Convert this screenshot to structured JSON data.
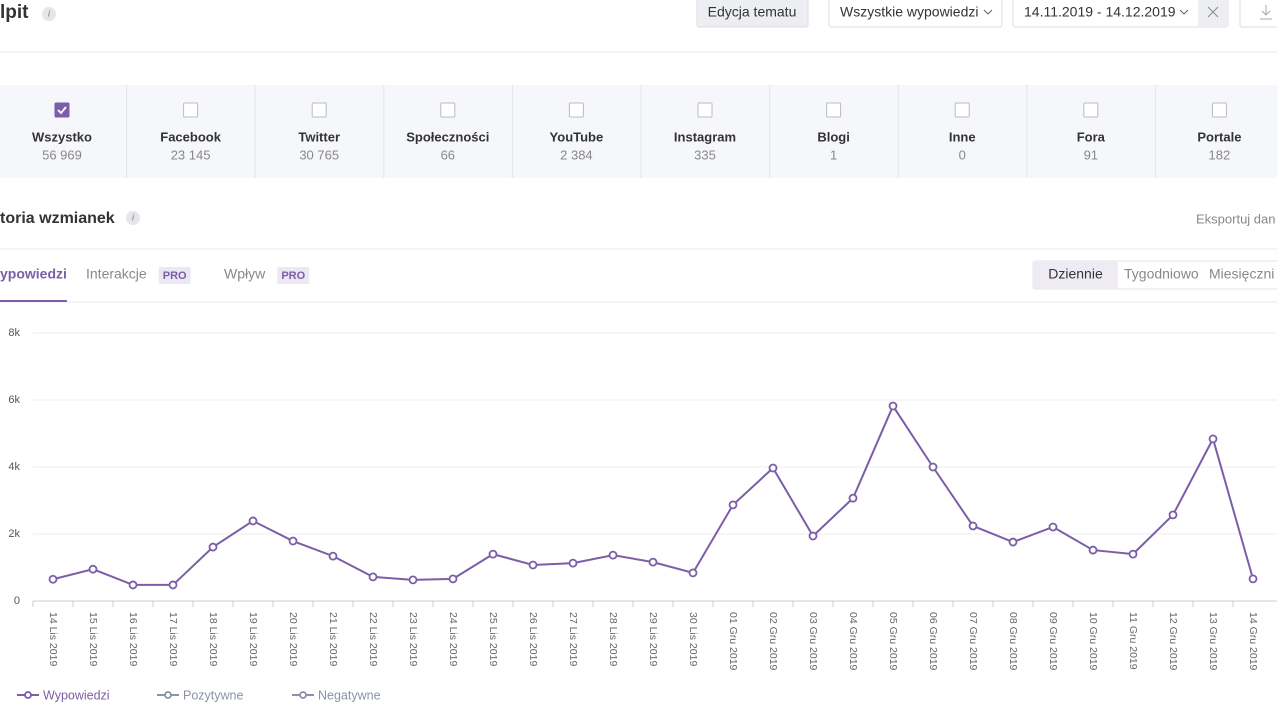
{
  "header": {
    "title": "lpit",
    "info": "i",
    "edit_button": "Edycja tematu",
    "filter": "Wszystkie wypowiedzi",
    "date_range": "14.11.2019 - 14.12.2019"
  },
  "sources": [
    {
      "label": "Wszystko",
      "count": "56 969",
      "checked": true
    },
    {
      "label": "Facebook",
      "count": "23 145",
      "checked": false
    },
    {
      "label": "Twitter",
      "count": "30 765",
      "checked": false
    },
    {
      "label": "Społeczności",
      "count": "66",
      "checked": false
    },
    {
      "label": "YouTube",
      "count": "2 384",
      "checked": false
    },
    {
      "label": "Instagram",
      "count": "335",
      "checked": false
    },
    {
      "label": "Blogi",
      "count": "1",
      "checked": false
    },
    {
      "label": "Inne",
      "count": "0",
      "checked": false
    },
    {
      "label": "Fora",
      "count": "91",
      "checked": false
    },
    {
      "label": "Portale",
      "count": "182",
      "checked": false
    }
  ],
  "section": {
    "title": "toria wzmianek",
    "info": "i",
    "export": "Eksportuj dan"
  },
  "tabs": [
    {
      "label": "ypowiedzi",
      "active": true
    },
    {
      "label": "Interakcje",
      "badge": "PRO",
      "active": false
    },
    {
      "label": "Wpływ",
      "badge": "PRO",
      "active": false
    }
  ],
  "periods": [
    {
      "label": "Dziennie",
      "active": true
    },
    {
      "label": "Tygodniowo",
      "active": false
    },
    {
      "label": "Miesięczni",
      "active": false
    }
  ],
  "chart_data": {
    "type": "line",
    "categories": [
      "14 Lis 2019",
      "15 Lis 2019",
      "16 Lis 2019",
      "17 Lis 2019",
      "18 Lis 2019",
      "19 Lis 2019",
      "20 Lis 2019",
      "21 Lis 2019",
      "22 Lis 2019",
      "23 Lis 2019",
      "24 Lis 2019",
      "25 Lis 2019",
      "26 Lis 2019",
      "27 Lis 2019",
      "28 Lis 2019",
      "29 Lis 2019",
      "30 Lis 2019",
      "01 Gru 2019",
      "02 Gru 2019",
      "03 Gru 2019",
      "04 Gru 2019",
      "05 Gru 2019",
      "06 Gru 2019",
      "07 Gru 2019",
      "08 Gru 2019",
      "09 Gru 2019",
      "10 Gru 2019",
      "11 Gru 2019",
      "12 Gru 2019",
      "13 Gru 2019",
      "14 Gru 2019"
    ],
    "series": [
      {
        "name": "Wypowiedzi",
        "color": "#7b5ea7",
        "values": [
          650,
          950,
          480,
          480,
          1610,
          2390,
          1790,
          1340,
          720,
          630,
          660,
          1400,
          1075,
          1130,
          1370,
          1160,
          840,
          2870,
          3970,
          1940,
          3070,
          5820,
          4000,
          2240,
          1760,
          2210,
          1520,
          1400,
          2570,
          4840,
          660
        ]
      },
      {
        "name": "Pozytywne",
        "color": "#8a93a3"
      },
      {
        "name": "Negatywne",
        "color": "#8a93a3"
      }
    ],
    "ylim": [
      0,
      8000
    ],
    "yticks": [
      0,
      {
        "value": 2000,
        "label": "2k"
      },
      {
        "value": 4000,
        "label": "4k"
      },
      {
        "value": 6000,
        "label": "6k"
      },
      {
        "value": 8000,
        "label": "8k"
      }
    ],
    "grid": true
  }
}
